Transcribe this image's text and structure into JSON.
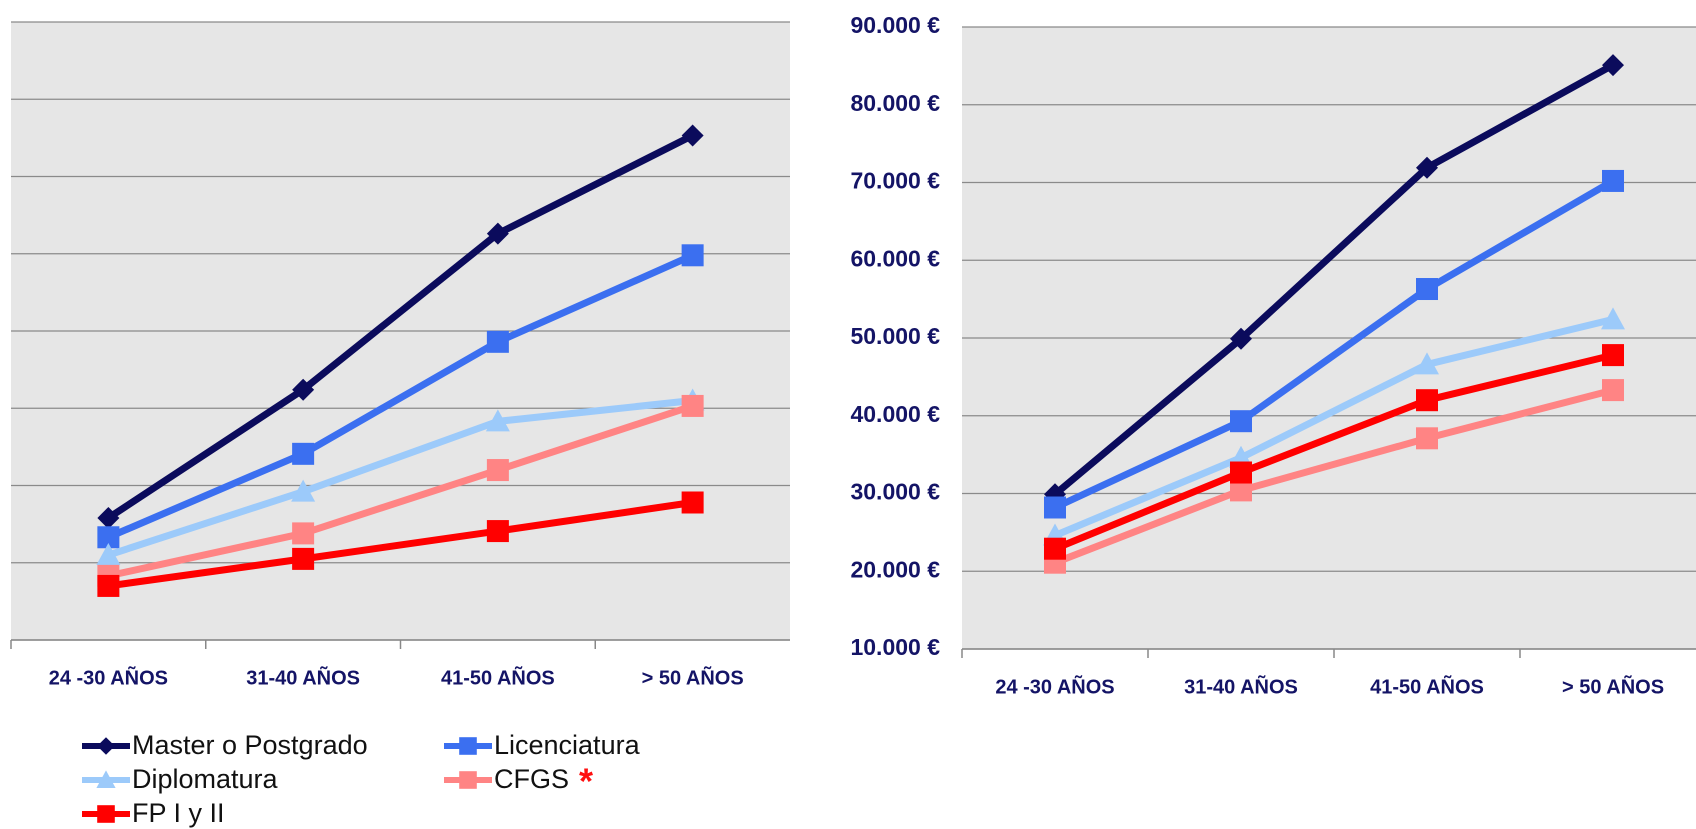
{
  "chart_data": [
    {
      "type": "line",
      "categories": [
        "24 -30 AÑOS",
        "31-40 AÑOS",
        "41-50 AÑOS",
        "> 50 AÑOS"
      ],
      "ylim": [
        10000,
        90000
      ],
      "yticks": [
        10000,
        20000,
        30000,
        40000,
        50000,
        60000,
        70000,
        80000,
        90000
      ],
      "grid": true,
      "legend": "bottom-left",
      "annotations": [
        "*"
      ],
      "series": [
        {
          "name": "Master o Postgrado",
          "color": "#0b0b5c",
          "marker": "diamond",
          "values": [
            25800,
            42400,
            62600,
            75300
          ]
        },
        {
          "name": "Licenciatura",
          "color": "#3b6ff0",
          "marker": "square",
          "values": [
            23300,
            34100,
            48600,
            59800
          ]
        },
        {
          "name": "Diplomatura",
          "color": "#9ccafa",
          "marker": "triangle",
          "values": [
            21000,
            29200,
            38300,
            41000
          ]
        },
        {
          "name": "CFGS",
          "color": "#ff8484",
          "marker": "square",
          "values": [
            18300,
            23800,
            32000,
            40300
          ]
        },
        {
          "name": "FP I y II",
          "color": "#ff0000",
          "marker": "square",
          "values": [
            17000,
            20500,
            24100,
            27800
          ]
        }
      ]
    },
    {
      "type": "line",
      "categories": [
        "24 -30 AÑOS",
        "31-40 AÑOS",
        "41-50 AÑOS",
        "> 50 AÑOS"
      ],
      "ylim": [
        10000,
        90000
      ],
      "yticks": [
        {
          "value": 10000,
          "label": "10.000 €"
        },
        {
          "value": 20000,
          "label": "20.000 €"
        },
        {
          "value": 30000,
          "label": "30.000 €"
        },
        {
          "value": 40000,
          "label": "40.000 €"
        },
        {
          "value": 50000,
          "label": "50.000 €"
        },
        {
          "value": 60000,
          "label": "60.000 €"
        },
        {
          "value": 70000,
          "label": "70.000 €"
        },
        {
          "value": 80000,
          "label": "80.000 €"
        },
        {
          "value": 90000,
          "label": "90.000 €"
        }
      ],
      "grid": true,
      "series": [
        {
          "color": "#0b0b5c",
          "marker": "diamond",
          "values": [
            29900,
            49900,
            71900,
            85100
          ]
        },
        {
          "color": "#3b6ff0",
          "marker": "square",
          "values": [
            28200,
            39300,
            56300,
            70200
          ]
        },
        {
          "color": "#9ccafa",
          "marker": "triangle",
          "values": [
            24600,
            34600,
            46600,
            52400
          ]
        },
        {
          "color": "#ff8484",
          "marker": "square",
          "values": [
            21100,
            30400,
            37100,
            43300
          ]
        },
        {
          "color": "#ff0000",
          "marker": "square",
          "values": [
            22900,
            32700,
            42000,
            47800
          ]
        }
      ]
    }
  ]
}
